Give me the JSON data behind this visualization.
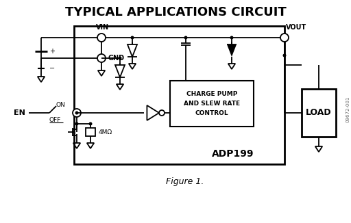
{
  "title": "TYPICAL APPLICATIONS CIRCUIT",
  "figure_label": "Figure 1.",
  "chip_label": "ADP199",
  "charge_pump_text": [
    "CHARGE PUMP",
    "AND SLEW RATE",
    "CONTROL"
  ],
  "load_text": "LOAD",
  "vin_label": "VIN",
  "vout_label": "VOUT",
  "gnd_label": "GND",
  "en_label": "EN",
  "on_label": "ON",
  "off_label": "OFF",
  "resistor_label": "4MΩ",
  "watermark": "09672-001",
  "bg_color": "#ffffff",
  "line_color": "#000000"
}
